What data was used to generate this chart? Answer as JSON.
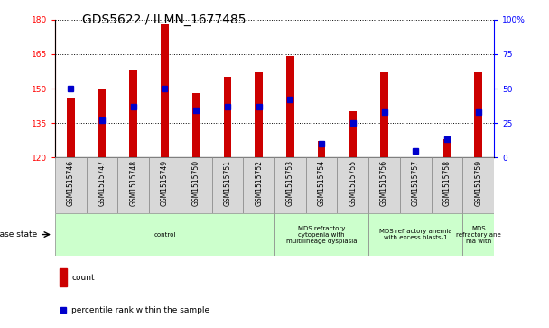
{
  "title": "GDS5622 / ILMN_1677485",
  "samples": [
    "GSM1515746",
    "GSM1515747",
    "GSM1515748",
    "GSM1515749",
    "GSM1515750",
    "GSM1515751",
    "GSM1515752",
    "GSM1515753",
    "GSM1515754",
    "GSM1515755",
    "GSM1515756",
    "GSM1515757",
    "GSM1515758",
    "GSM1515759"
  ],
  "counts": [
    146,
    150,
    158,
    178,
    148,
    155,
    157,
    164,
    127,
    140,
    157,
    120,
    128,
    157
  ],
  "percentile_ranks": [
    50,
    27,
    37,
    50,
    34,
    37,
    37,
    42,
    10,
    25,
    33,
    5,
    13,
    33
  ],
  "ylim_left": [
    120,
    180
  ],
  "ylim_right": [
    0,
    100
  ],
  "yticks_left": [
    120,
    135,
    150,
    165,
    180
  ],
  "yticks_right": [
    0,
    25,
    50,
    75,
    100
  ],
  "bar_color": "#cc0000",
  "dot_color": "#0000cc",
  "bar_bottom": 120,
  "bar_width": 0.25,
  "group_defs": [
    {
      "start": 0,
      "end": 7,
      "label": "control",
      "color": "#ccffcc"
    },
    {
      "start": 7,
      "end": 10,
      "label": "MDS refractory\ncytopenia with\nmultilineage dysplasia",
      "color": "#ccffcc"
    },
    {
      "start": 10,
      "end": 13,
      "label": "MDS refractory anemia\nwith excess blasts-1",
      "color": "#ccffcc"
    },
    {
      "start": 13,
      "end": 14,
      "label": "MDS\nrefractory ane\nma with",
      "color": "#ccffcc"
    }
  ],
  "legend_count_label": "count",
  "legend_pct_label": "percentile rank within the sample",
  "disease_state_label": "disease state",
  "title_fontsize": 10,
  "tick_fontsize": 6.5,
  "label_fontsize": 7.5
}
